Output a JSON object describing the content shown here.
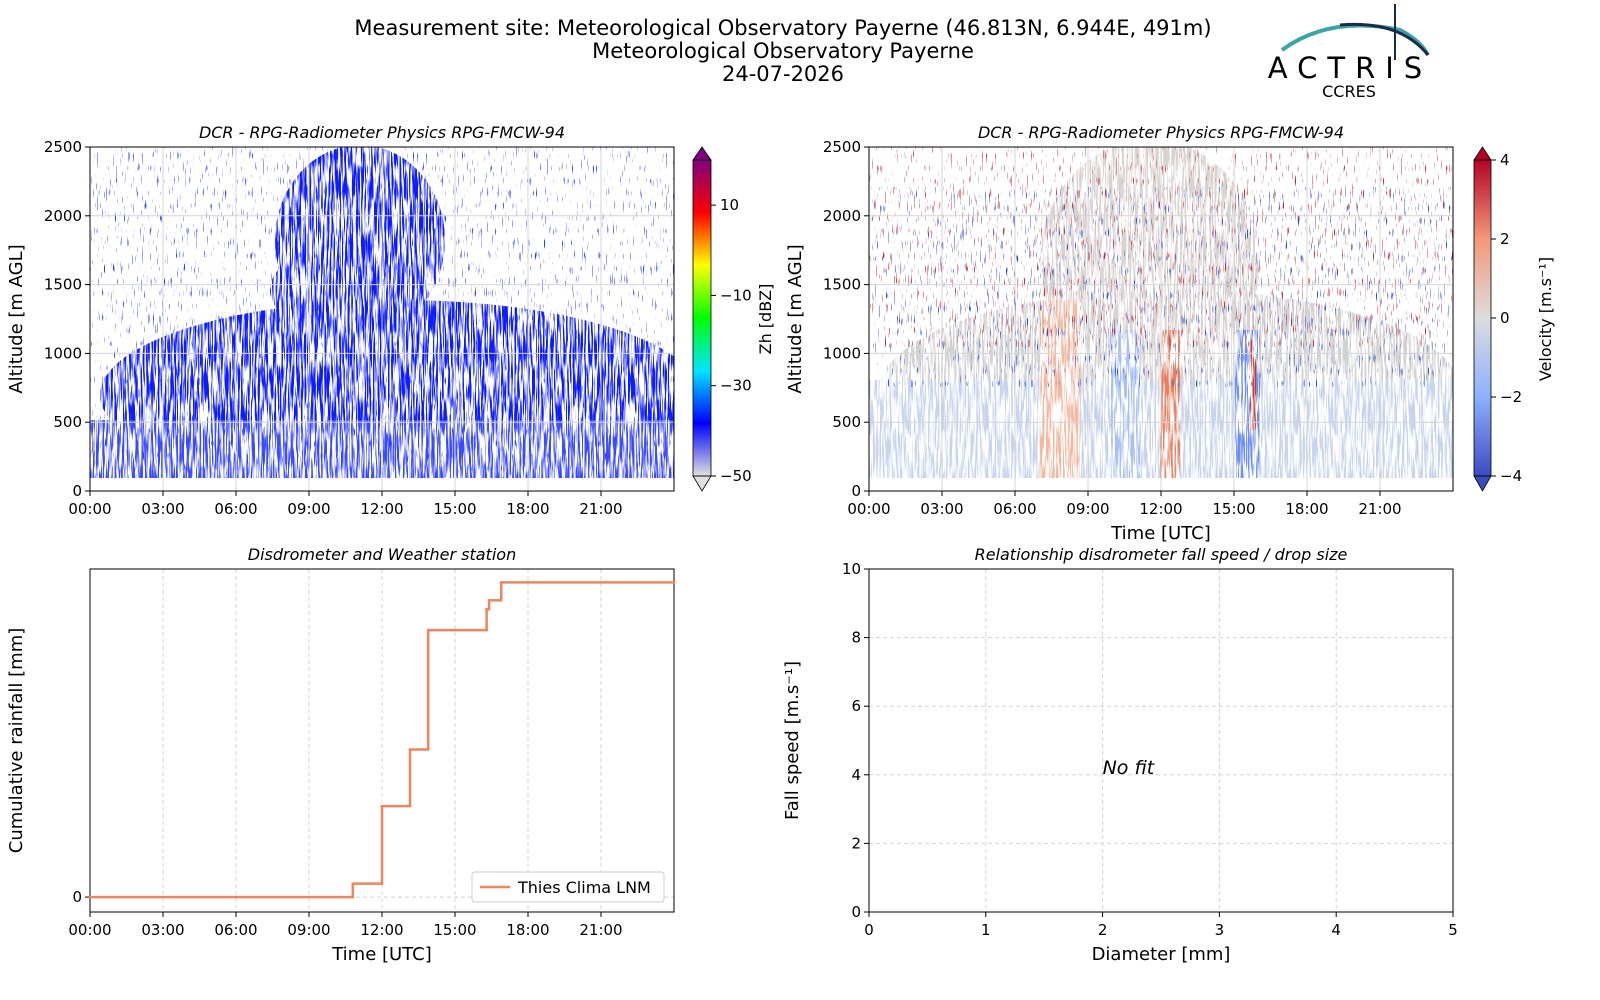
{
  "header": {
    "lines": [
      "Measurement site: Meteorological Observatory Payerne (46.813N, 6.944E, 491m)",
      "Meteorological Observatory Payerne",
      "24-07-2026"
    ],
    "logo": "ACTRIS",
    "logo_sub": "CCRES"
  },
  "chart_data": [
    {
      "type": "heatmap",
      "title": "DCR - RPG-Radiometer Physics RPG-FMCW-94",
      "ylabel": "Altitude [m AGL]",
      "xlim": [
        0,
        24
      ],
      "xticks": [
        {
          "value": 0,
          "label": "00:00"
        },
        {
          "value": 3,
          "label": "03:00"
        },
        {
          "value": 6,
          "label": "06:00"
        },
        {
          "value": 9,
          "label": "09:00"
        },
        {
          "value": 12,
          "label": "12:00"
        },
        {
          "value": 15,
          "label": "15:00"
        },
        {
          "value": 18,
          "label": "18:00"
        },
        {
          "value": 21,
          "label": "21:00"
        }
      ],
      "ylim": [
        0,
        2500
      ],
      "yticks": [
        0,
        500,
        1000,
        1500,
        2000,
        2500
      ],
      "grid": true,
      "colorbar": {
        "label": "Zh [dBZ]",
        "clim": [
          -50,
          20
        ],
        "ticks": [
          {
            "value": -50,
            "label": "−50"
          },
          {
            "value": -30,
            "label": "−30"
          },
          {
            "value": -10,
            "label": "−10"
          },
          10
        ],
        "colors": [
          "#e0e0e0",
          "#0000ff",
          "#00e5ff",
          "#00ff00",
          "#ffff00",
          "#ff0000",
          "#800080"
        ]
      }
    },
    {
      "type": "heatmap",
      "title": "DCR - RPG-Radiometer Physics RPG-FMCW-94",
      "ylabel": "Altitude [m AGL]",
      "xlabel": "Time [UTC]",
      "xlim": [
        0,
        24
      ],
      "xticks": [
        {
          "value": 0,
          "label": "00:00"
        },
        {
          "value": 3,
          "label": "03:00"
        },
        {
          "value": 6,
          "label": "06:00"
        },
        {
          "value": 9,
          "label": "09:00"
        },
        {
          "value": 12,
          "label": "12:00"
        },
        {
          "value": 15,
          "label": "15:00"
        },
        {
          "value": 18,
          "label": "18:00"
        },
        {
          "value": 21,
          "label": "21:00"
        }
      ],
      "ylim": [
        0,
        2500
      ],
      "yticks": [
        0,
        500,
        1000,
        1500,
        2000,
        2500
      ],
      "grid": true,
      "colorbar": {
        "label": "Velocity [m.s⁻¹]",
        "clim": [
          -4,
          4
        ],
        "ticks": [
          {
            "value": -4,
            "label": "−4"
          },
          {
            "value": -2,
            "label": "−2"
          },
          0,
          2,
          4
        ],
        "colors": [
          "#3b4cc0",
          "#8db0fe",
          "#dddddd",
          "#f4987a",
          "#b40426"
        ]
      }
    },
    {
      "type": "line",
      "title": "Disdrometer and Weather station",
      "ylabel": "Cumulative rainfall [mm]",
      "xlabel": "Time [UTC]",
      "xlim": [
        0,
        24
      ],
      "xticks": [
        {
          "value": 0,
          "label": "00:00"
        },
        {
          "value": 3,
          "label": "03:00"
        },
        {
          "value": 6,
          "label": "06:00"
        },
        {
          "value": 9,
          "label": "09:00"
        },
        {
          "value": 12,
          "label": "12:00"
        },
        {
          "value": 15,
          "label": "15:00"
        },
        {
          "value": 18,
          "label": "18:00"
        },
        {
          "value": 21,
          "label": "21:00"
        }
      ],
      "ylim": [
        -0.1,
        2.2
      ],
      "yticks": [
        0
      ],
      "grid": true,
      "drawstyle": "steps-post",
      "legend": "lower right",
      "x": [
        0,
        10.8,
        12,
        13.15,
        13.9,
        16.3,
        16.4,
        16.9,
        24
      ],
      "series": [
        {
          "name": "Thies Clima LNM",
          "color": "#f0845c",
          "values": [
            0,
            0.09,
            0.61,
            0.99,
            1.79,
            1.93,
            1.99,
            2.11,
            2.11
          ]
        }
      ]
    },
    {
      "type": "scatter",
      "title": "Relationship disdrometer fall speed / drop size",
      "ylabel": "Fall speed [m.s⁻¹]",
      "xlabel": "Diameter [mm]",
      "xlim": [
        0,
        5
      ],
      "xticks": [
        0,
        1,
        2,
        3,
        4,
        5
      ],
      "ylim": [
        0,
        10
      ],
      "yticks": [
        0,
        2,
        4,
        6,
        8,
        10
      ],
      "grid": true,
      "annotation": "No fit"
    }
  ]
}
